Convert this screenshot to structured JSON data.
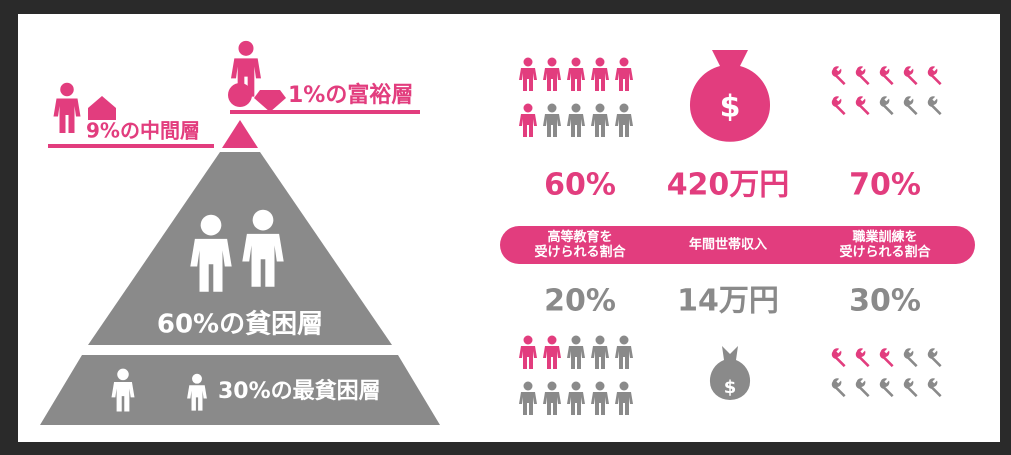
{
  "pyramid": {
    "top": "1%の富裕層",
    "middle": "9%の中間層",
    "poor": "60%の貧困層",
    "poorest": "30%の最貧困層"
  },
  "stats": {
    "columns": [
      {
        "rich": "60%",
        "label": [
          "高等教育を",
          "受けられる割合"
        ],
        "poor": "20%"
      },
      {
        "rich": "420万円",
        "label": [
          "年間世帯収入"
        ],
        "poor": "14万円"
      },
      {
        "rich": "70%",
        "label": [
          "職業訓練を",
          "受けられる割合"
        ],
        "poor": "30%"
      }
    ]
  }
}
